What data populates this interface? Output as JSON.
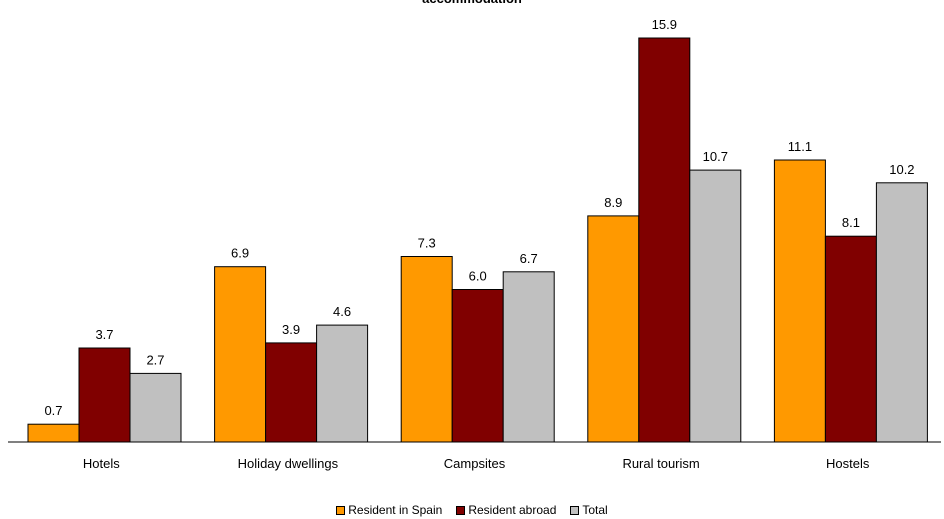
{
  "chart_data": {
    "type": "bar",
    "title": "accommodation",
    "xlabel": "",
    "ylabel": "",
    "categories": [
      "Hotels",
      "Holiday dwellings",
      "Campsites",
      "Rural tourism",
      "Hostels"
    ],
    "series": [
      {
        "name": "Resident in Spain",
        "color": "#FF9900",
        "values": [
          0.7,
          6.9,
          7.3,
          8.9,
          11.1
        ]
      },
      {
        "name": "Resident abroad",
        "color": "#800000",
        "values": [
          3.7,
          3.9,
          6.0,
          15.9,
          8.1
        ]
      },
      {
        "name": "Total",
        "color": "#C0C0C0",
        "values": [
          2.7,
          4.6,
          6.7,
          10.7,
          10.2
        ]
      }
    ],
    "ylim": [
      0,
      17.5
    ],
    "grid": false,
    "legend_position": "bottom",
    "data_labels": true
  }
}
